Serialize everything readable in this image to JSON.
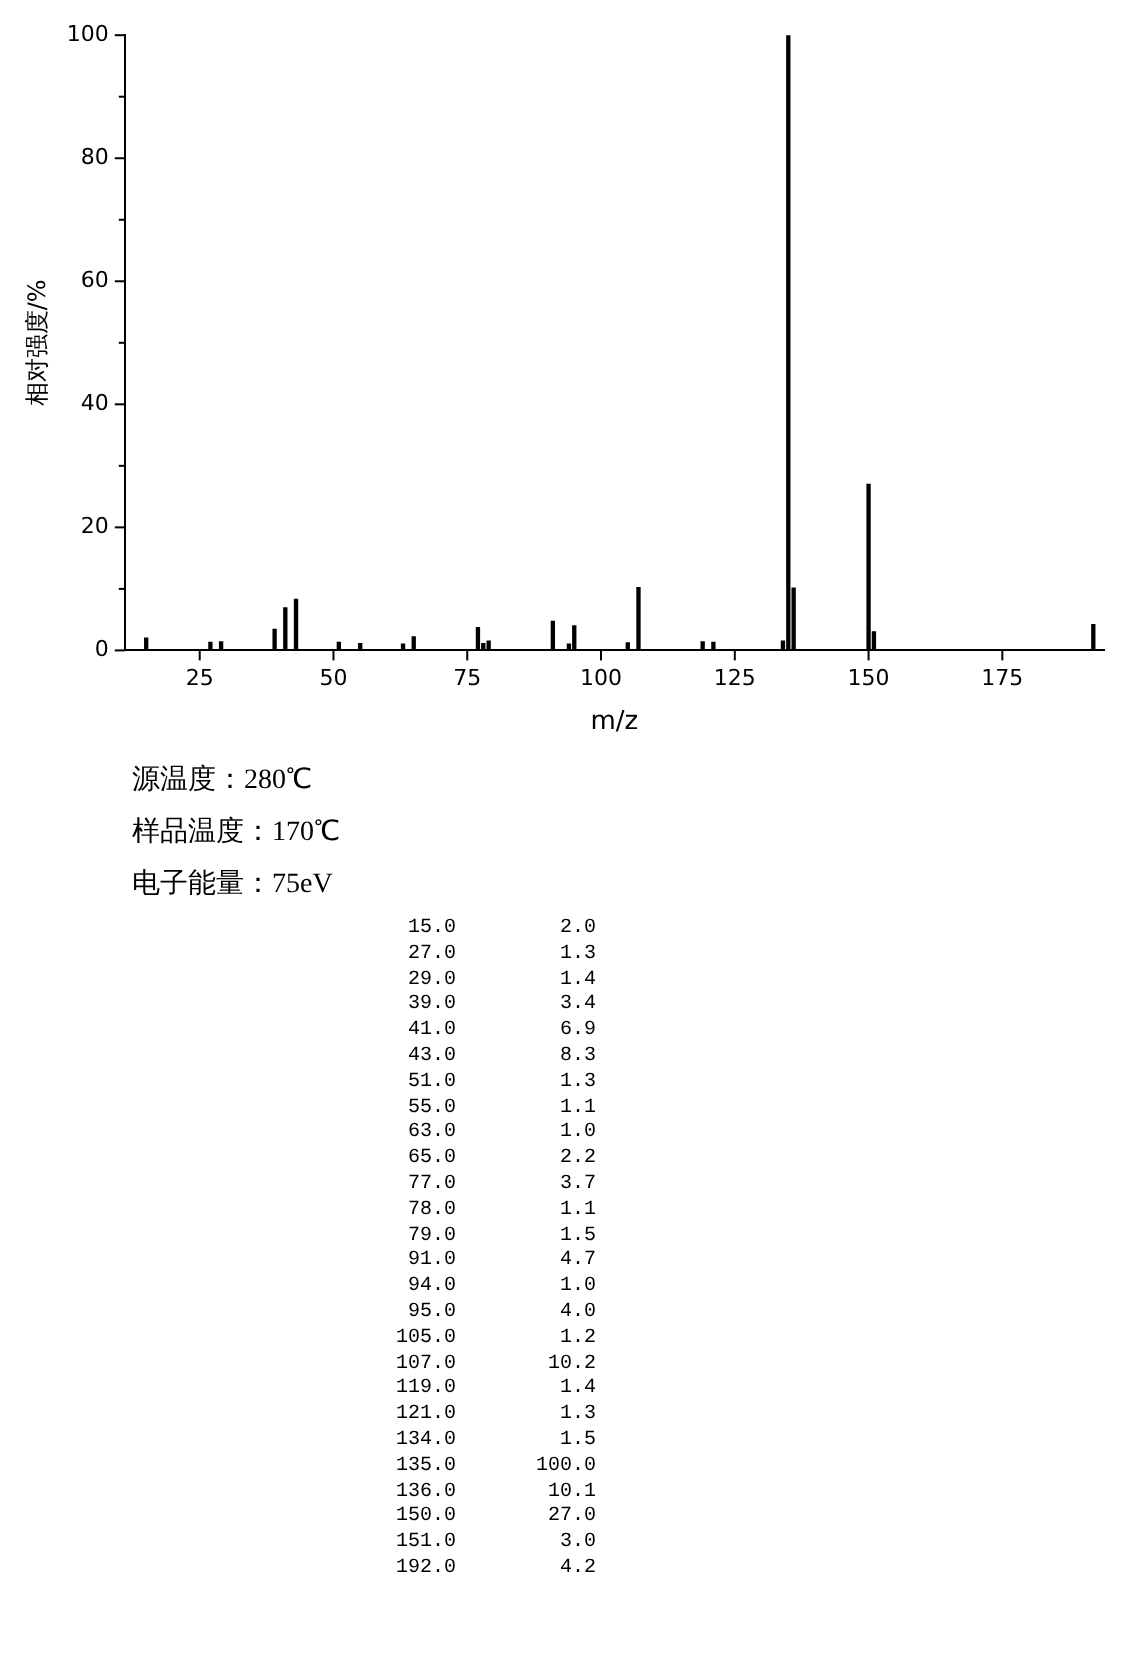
{
  "chart_data": {
    "type": "bar",
    "xlabel": "m/z",
    "ylabel": "相对强度/%",
    "x": [
      15,
      27,
      29,
      39,
      41,
      43,
      51,
      55,
      63,
      65,
      77,
      78,
      79,
      91,
      94,
      95,
      105,
      107,
      119,
      121,
      134,
      135,
      136,
      150,
      151,
      192
    ],
    "series": [
      {
        "color": "#000000",
        "values": [
          2.0,
          1.3,
          1.4,
          3.4,
          6.9,
          8.3,
          1.3,
          1.1,
          1.0,
          2.2,
          3.7,
          1.1,
          1.5,
          4.7,
          1.0,
          4.0,
          1.2,
          10.2,
          1.4,
          1.3,
          1.5,
          100.0,
          10.1,
          27.0,
          3.0,
          4.2
        ]
      }
    ],
    "value_labels": [
      "2.0",
      "1.3",
      "1.4",
      "3.4",
      "6.9",
      "8.3",
      "1.3",
      "1.1",
      "1.0",
      "2.2",
      "3.7",
      "1.1",
      "1.5",
      "4.7",
      "1.0",
      "4.0",
      "1.2",
      "10.2",
      "1.4",
      "1.3",
      "1.5",
      "100.0",
      "10.1",
      "27.0",
      "3.0",
      "4.2"
    ],
    "xlim": [
      11,
      194
    ],
    "xticks": [
      25,
      50,
      75,
      100,
      125,
      150,
      175
    ],
    "ylim": [
      0,
      100
    ],
    "yticks": [
      0,
      {
        "value": 10,
        "label": null
      },
      20,
      {
        "value": 30,
        "label": null
      },
      40,
      {
        "value": 50,
        "label": null
      },
      60,
      {
        "value": 70,
        "label": null
      },
      80,
      {
        "value": 90,
        "label": null
      },
      100
    ],
    "grid": false,
    "legend": false,
    "annotations": [
      "源温度：280℃",
      "样品温度：170℃",
      "电子能量：75eV",
      "15.0",
      "27.0",
      "29.0",
      "39.0",
      "41.0",
      "43.0",
      "51.0",
      "55.0",
      "63.0",
      "65.0",
      "77.0",
      "78.0",
      "79.0",
      "91.0",
      "94.0",
      "95.0",
      "105.0",
      "107.0",
      "119.0",
      "121.0",
      "134.0",
      "135.0",
      "136.0",
      "150.0",
      "151.0",
      "192.0"
    ]
  }
}
